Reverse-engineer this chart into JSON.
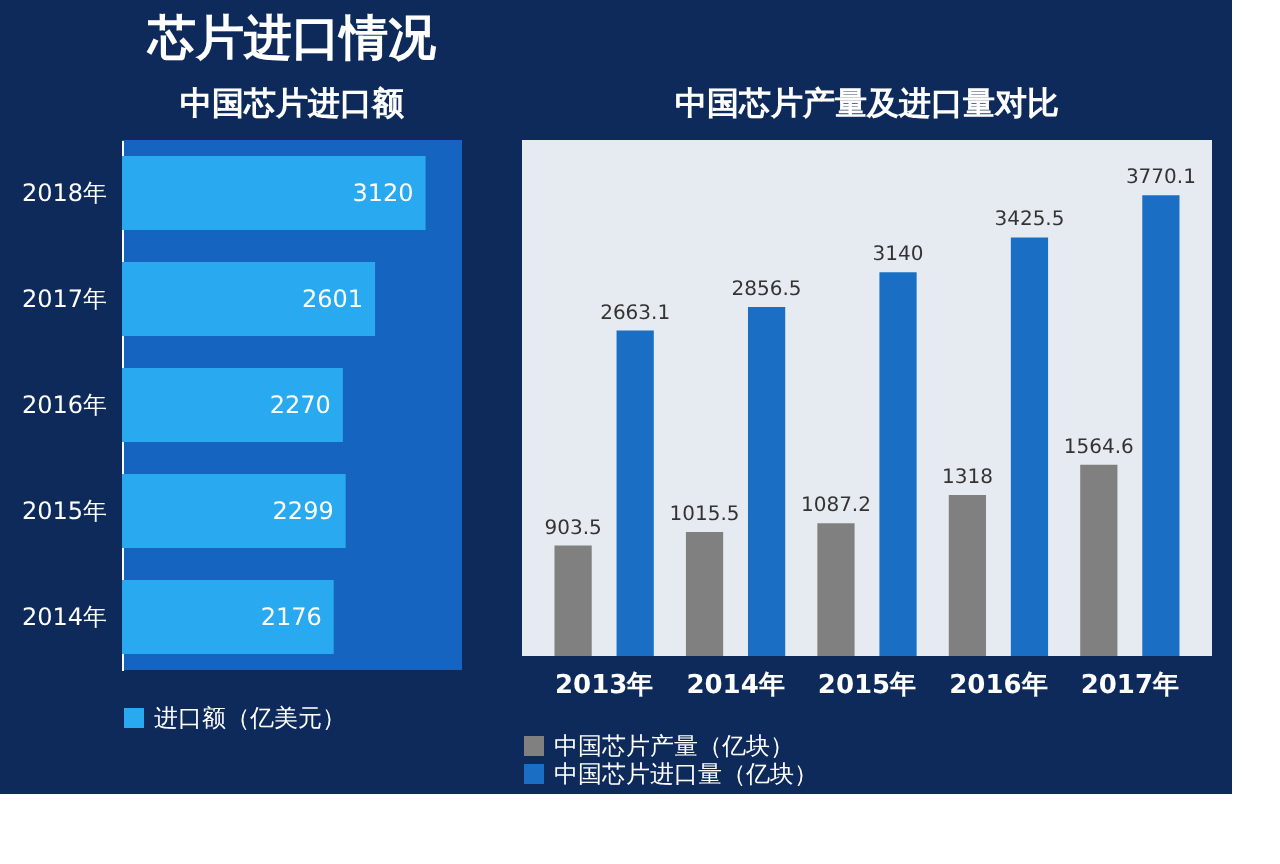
{
  "chart_data": [
    {
      "type": "bar",
      "title": "芯片进口情况",
      "subtitle": "中国芯片进口额",
      "orientation": "horizontal",
      "categories": [
        "2018年",
        "2017年",
        "2016年",
        "2015年",
        "2014年"
      ],
      "series": [
        {
          "name": "进口额（亿美元）",
          "color": "#29a9ef",
          "values": [
            3120,
            2601,
            2270,
            2299,
            2176
          ]
        }
      ],
      "data_labels": true,
      "legend": "bottom"
    },
    {
      "type": "bar",
      "title": "中国芯片产量及进口量对比",
      "categories": [
        "2013年",
        "2014年",
        "2015年",
        "2016年",
        "2017年"
      ],
      "series": [
        {
          "name": "中国芯片产量（亿块）",
          "color": "#808080",
          "values": [
            903.5,
            1015.5,
            1087.2,
            1318,
            1564.6
          ]
        },
        {
          "name": "中国芯片进口量（亿块）",
          "color": "#1a6fc4",
          "values": [
            2663.1,
            2856.5,
            3140,
            3425.5,
            3770.1
          ]
        }
      ],
      "data_labels": true,
      "legend": "bottom"
    }
  ]
}
